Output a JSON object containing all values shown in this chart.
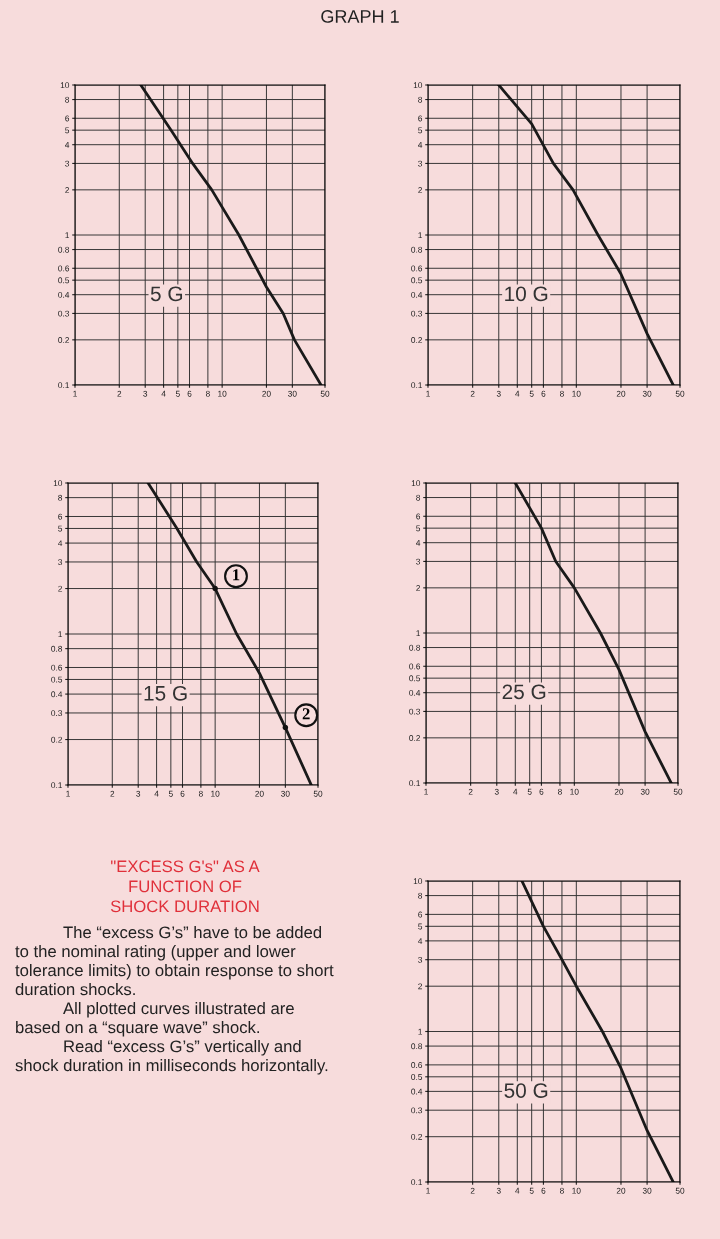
{
  "chart_data": [
    {
      "type": "line",
      "title": "GRAPH 1",
      "annotations": [
        "5 G"
      ],
      "log": "xy",
      "grid": true,
      "marker": "none",
      "line_style": "solid",
      "xlim": [
        1,
        50
      ],
      "ylim": [
        0.1,
        10
      ],
      "xticks": [
        1,
        2,
        3,
        4,
        5,
        6,
        8,
        10,
        20,
        30,
        50
      ],
      "yticks": [
        0.1,
        0.2,
        0.3,
        0.4,
        0.5,
        0.6,
        0.8,
        1,
        2,
        3,
        4,
        5,
        6,
        8,
        10
      ],
      "series": [
        {
          "color": "#1a1a1a",
          "x": [
            2.8,
            4.5,
            6.3,
            8.5,
            13,
            20,
            26,
            31,
            47
          ],
          "values": [
            10,
            5,
            3,
            2,
            1,
            0.45,
            0.3,
            0.2,
            0.1
          ]
        }
      ]
    },
    {
      "type": "line",
      "annotations": [
        "10 G"
      ],
      "log": "xy",
      "grid": true,
      "marker": "none",
      "line_style": "solid",
      "xlim": [
        1,
        50
      ],
      "ylim": [
        0.1,
        10
      ],
      "xticks": [
        1,
        2,
        3,
        4,
        5,
        6,
        8,
        10,
        20,
        30,
        50
      ],
      "yticks": [
        0.1,
        0.2,
        0.3,
        0.4,
        0.5,
        0.6,
        0.8,
        1,
        2,
        3,
        4,
        5,
        6,
        8,
        10
      ],
      "series": [
        {
          "color": "#1a1a1a",
          "x": [
            3,
            5,
            7,
            9.5,
            14,
            20,
            30,
            45
          ],
          "values": [
            10,
            5.5,
            3,
            2,
            1,
            0.55,
            0.22,
            0.1
          ]
        }
      ]
    },
    {
      "type": "line",
      "annotations": [
        "15 G",
        {
          "text": "1",
          "x": 10,
          "y": 2
        },
        {
          "text": "2",
          "x": 30,
          "y": 0.24
        }
      ],
      "log": "xy",
      "grid": true,
      "marker": "none",
      "line_style": "solid",
      "xlim": [
        1,
        50
      ],
      "ylim": [
        0.1,
        10
      ],
      "xticks": [
        1,
        2,
        3,
        4,
        5,
        6,
        8,
        10,
        20,
        30,
        50
      ],
      "yticks": [
        0.1,
        0.2,
        0.3,
        0.4,
        0.5,
        0.6,
        0.8,
        1,
        2,
        3,
        4,
        5,
        6,
        8,
        10
      ],
      "series": [
        {
          "color": "#1a1a1a",
          "x": [
            3.5,
            5.5,
            7.5,
            10,
            14,
            20,
            30,
            45
          ],
          "values": [
            10,
            5,
            3,
            2,
            1,
            0.55,
            0.24,
            0.1
          ]
        }
      ]
    },
    {
      "type": "line",
      "annotations": [
        "25 G"
      ],
      "log": "xy",
      "grid": true,
      "marker": "none",
      "line_style": "solid",
      "xlim": [
        1,
        50
      ],
      "ylim": [
        0.1,
        10
      ],
      "xticks": [
        1,
        2,
        3,
        4,
        5,
        6,
        8,
        10,
        20,
        30,
        50
      ],
      "yticks": [
        0.1,
        0.2,
        0.3,
        0.4,
        0.5,
        0.6,
        0.8,
        1,
        2,
        3,
        4,
        5,
        6,
        8,
        10
      ],
      "series": [
        {
          "color": "#1a1a1a",
          "x": [
            4,
            6,
            7.5,
            10,
            15,
            20,
            30,
            45
          ],
          "values": [
            10,
            5,
            3,
            2,
            1,
            0.57,
            0.22,
            0.1
          ]
        }
      ]
    },
    {
      "type": "other",
      "title": "\"EXCESS G's\" AS A FUNCTION OF SHOCK DURATION",
      "annotations": [
        "The “excess G’s” have to be added to the nominal rating (upper and lower tolerance limits) to obtain response to short duration shocks.",
        "All plotted curves illustrated are based on a “square wave” shock.",
        "Read “excess G’s” vertically and shock duration in milliseconds horizontally."
      ]
    },
    {
      "type": "line",
      "annotations": [
        "50 G"
      ],
      "log": "xy",
      "grid": true,
      "marker": "none",
      "line_style": "solid",
      "xlim": [
        1,
        50
      ],
      "ylim": [
        0.1,
        10
      ],
      "xticks": [
        1,
        2,
        3,
        4,
        5,
        6,
        8,
        10,
        20,
        30,
        50
      ],
      "yticks": [
        0.1,
        0.2,
        0.3,
        0.4,
        0.5,
        0.6,
        0.8,
        1,
        2,
        3,
        4,
        5,
        6,
        8,
        10
      ],
      "series": [
        {
          "color": "#1a1a1a",
          "x": [
            4.3,
            6,
            8,
            10,
            15,
            20,
            30,
            45
          ],
          "values": [
            10,
            5,
            3,
            2,
            1,
            0.57,
            0.22,
            0.1
          ]
        }
      ]
    }
  ]
}
